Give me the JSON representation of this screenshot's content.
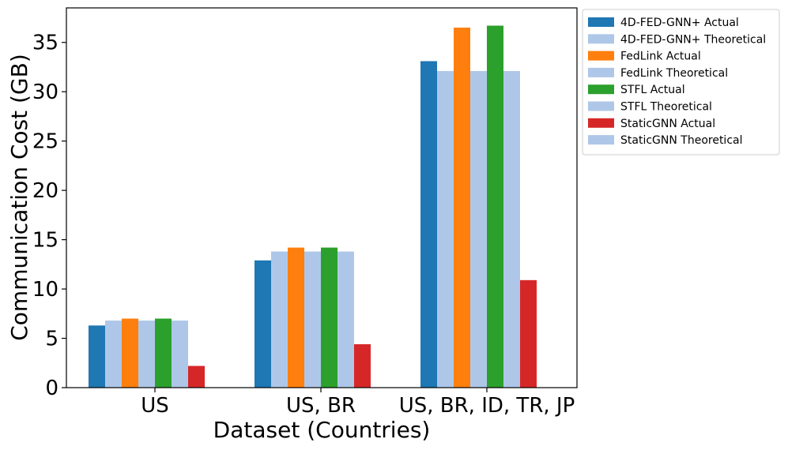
{
  "chart_data": {
    "type": "bar",
    "title": "",
    "xlabel": "Dataset (Countries)",
    "ylabel": "Communication Cost (GB)",
    "categories": [
      "US",
      "US, BR",
      "US, BR, ID, TR, JP"
    ],
    "ylim": [
      0,
      38.5
    ],
    "yticks": [
      "0",
      "5",
      "10",
      "15",
      "20",
      "25",
      "30",
      "35"
    ],
    "grid": false,
    "legend_position": "outside-top-right",
    "series": [
      {
        "name": "4D-FED-GNN+ Actual",
        "color": "#1f77b4",
        "values": [
          6.3,
          12.9,
          33.1
        ]
      },
      {
        "name": "4D-FED-GNN+ Theoretical",
        "color": "#aec7e8",
        "values": [
          6.8,
          13.8,
          32.1
        ]
      },
      {
        "name": "FedLink Actual",
        "color": "#ff7f0e",
        "values": [
          7.0,
          14.2,
          36.5
        ]
      },
      {
        "name": "FedLink Theoretical",
        "color": "#aec7e8",
        "values": [
          6.8,
          13.8,
          32.1
        ]
      },
      {
        "name": "STFL Actual",
        "color": "#2ca02c",
        "values": [
          7.0,
          14.2,
          36.7
        ]
      },
      {
        "name": "STFL Theoretical",
        "color": "#aec7e8",
        "values": [
          6.8,
          13.8,
          32.1
        ]
      },
      {
        "name": "StaticGNN Actual",
        "color": "#d62728",
        "values": [
          2.2,
          4.4,
          10.9
        ]
      },
      {
        "name": "StaticGNN Theoretical",
        "color": "#aec7e8",
        "values": [
          0,
          0,
          0
        ]
      }
    ]
  }
}
